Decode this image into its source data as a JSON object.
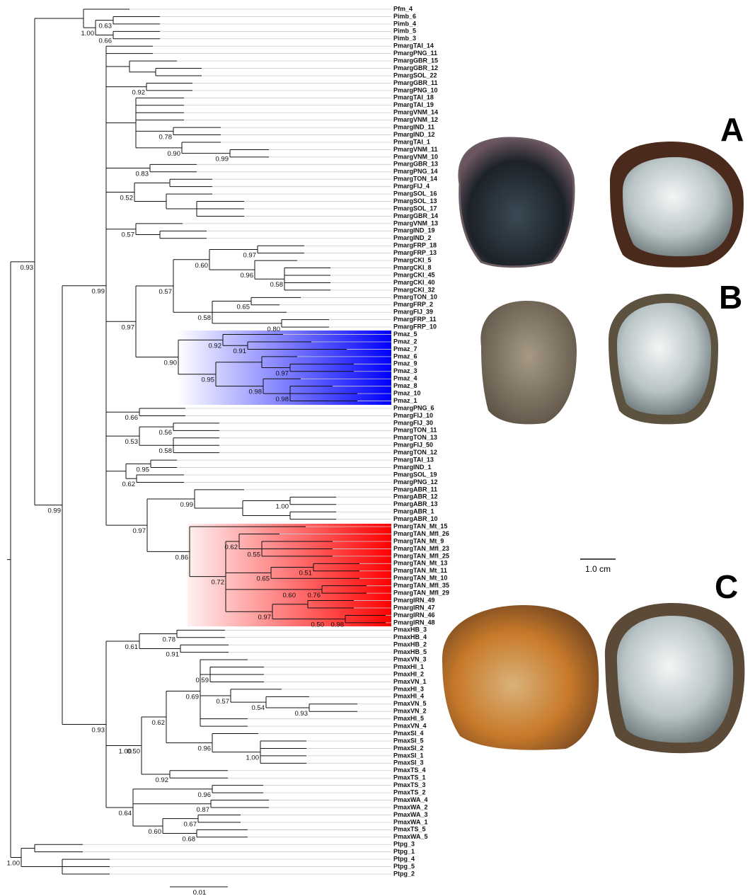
{
  "leaves": [
    "Pfm_4",
    "Pimb_6",
    "Pimb_4",
    "Pimb_5",
    "Pimb_3",
    "PmargTAI_14",
    "PmargPNG_11",
    "PmargGBR_15",
    "PmargGBR_12",
    "PmargSOL_22",
    "PmargGBR_11",
    "PmargPNG_10",
    "PmargTAI_18",
    "PmargTAI_19",
    "PmargVNM_14",
    "PmargVNM_12",
    "PmargIND_11",
    "PmargIND_12",
    "PmargTAI_1",
    "PmargVNM_11",
    "PmargVNM_10",
    "PmargGBR_13",
    "PmargPNG_14",
    "PmargTON_14",
    "PmargFIJ_4",
    "PmargSOL_16",
    "PmargSOL_13",
    "PmargSOL_17",
    "PmargGBR_14",
    "PmargVNM_13",
    "PmargIND_19",
    "PmargIND_2",
    "PmargFRP_18",
    "PmargFRP_13",
    "PmargCKI_5",
    "PmargCKI_8",
    "PmargCKI_45",
    "PmargCKI_40",
    "PmargCKI_32",
    "PmargTON_10",
    "PmargFRP_2",
    "PmargFIJ_39",
    "PmargFRP_11",
    "PmargFRP_10",
    "Pmaz_5",
    "Pmaz_2",
    "Pmaz_7",
    "Pmaz_6",
    "Pmaz_9",
    "Pmaz_3",
    "Pmaz_4",
    "Pmaz_8",
    "Pmaz_10",
    "Pmaz_1",
    "PmargPNG_6",
    "PmargFIJ_10",
    "PmargFIJ_30",
    "PmargTON_11",
    "PmargTON_13",
    "PmargFIJ_50",
    "PmargTON_12",
    "PmargTAI_13",
    "PmargIND_1",
    "PmargSOL_19",
    "PmargPNG_12",
    "PmargABR_11",
    "PmargABR_12",
    "PmargABR_13",
    "PmargABR_1",
    "PmargABR_10",
    "PmargTAN_Mt_15",
    "PmargTAN_Mfl_26",
    "PmargTAN_Mt_9",
    "PmargTAN_Mfl_23",
    "PmargTAN_Mfl_25",
    "PmargTAN_Mt_13",
    "PmargTAN_Mt_11",
    "PmargTAN_Mt_10",
    "PmargTAN_Mfl_35",
    "PmargTAN_Mfl_29",
    "PmargIRN_49",
    "PmargIRN_47",
    "PmargIRN_46",
    "PmargIRN_48",
    "PmaxHB_3",
    "PmaxHB_4",
    "PmaxHB_2",
    "PmaxHB_5",
    "PmaxVN_3",
    "PmaxHI_1",
    "PmaxHI_2",
    "PmaxVN_1",
    "PmaxHI_3",
    "PmaxHI_4",
    "PmaxVN_5",
    "PmaxVN_2",
    "PmaxHI_5",
    "PmaxVN_4",
    "PmaxSI_4",
    "PmaxSI_5",
    "PmaxSI_2",
    "PmaxSI_1",
    "PmaxSI_3",
    "PmaxTS_4",
    "PmaxTS_1",
    "PmaxTS_3",
    "PmaxTS_2",
    "PmaxWA_4",
    "PmaxWA_2",
    "PmaxWA_3",
    "PmaxWA_1",
    "PmaxTS_5",
    "PmaxWA_5",
    "Ptpg_3",
    "Ptpg_1",
    "Ptpg_4",
    "Ptpg_5",
    "Ptpg_2"
  ],
  "support_values": [
    "0.93",
    "1.00",
    "0.63",
    "0.66",
    "0.99",
    "0.99",
    "0.92",
    "0.78",
    "0.90",
    "0.99",
    "0.83",
    "0.52",
    "0.57",
    "0.97",
    "0.57",
    "0.60",
    "0.97",
    "0.96",
    "0.58",
    "0.58",
    "0.65",
    "0.80",
    "0.90",
    "0.92",
    "0.91",
    "0.95",
    "0.97",
    "0.98",
    "0.98",
    "0.66",
    "0.53",
    "0.56",
    "0.58",
    "0.95",
    "0.62",
    "0.97",
    "0.99",
    "1.00",
    "0.86",
    "0.72",
    "0.62",
    "0.55",
    "0.65",
    "0.51",
    "0.60",
    "0.76",
    "0.97",
    "0.50",
    "0.98",
    "0.93",
    "0.61",
    "0.78",
    "0.91",
    "1.00",
    "0.50",
    "0.62",
    "0.69",
    "0.59",
    "0.57",
    "0.54",
    "0.93",
    "0.96",
    "1.00",
    "0.92",
    "0.64",
    "0.96",
    "0.87",
    "0.60",
    "0.67",
    "0.68",
    "1.00"
  ],
  "panels": [
    "A",
    "B",
    "C"
  ],
  "photo_scale_bar": "1.0 cm",
  "tree_scale_bar": "0.01"
}
